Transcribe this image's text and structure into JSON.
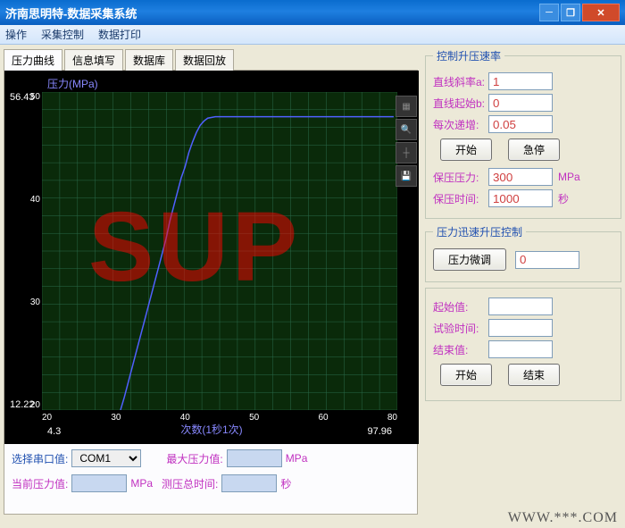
{
  "window": {
    "title": "济南思明特-数据采集系统"
  },
  "menu": {
    "items": [
      "操作",
      "采集控制",
      "数据打印"
    ]
  },
  "tabs": {
    "items": [
      "压力曲线",
      "信息填写",
      "数据库",
      "数据回放"
    ],
    "active": 0
  },
  "chart": {
    "type": "line",
    "ylabel": "压力(MPa)",
    "xlabel": "次数(1秒1次)",
    "x_min": 4.3,
    "x_max": 97.96,
    "y_min": 12.22,
    "y_max": 56.43,
    "x_ticks": [
      20,
      30,
      40,
      50,
      60,
      80
    ],
    "y_ticks": [
      20,
      30,
      40,
      50
    ],
    "curve_color": "#5060ff",
    "grid_color": "#2a6a4a",
    "bg_color": "#0a2a0a",
    "outer_bg": "#000000",
    "points": [
      [
        25,
        12.22
      ],
      [
        26,
        14
      ],
      [
        27,
        16
      ],
      [
        28,
        18
      ],
      [
        29,
        20
      ],
      [
        30,
        22
      ],
      [
        31,
        24
      ],
      [
        32,
        26
      ],
      [
        33,
        28
      ],
      [
        34,
        30
      ],
      [
        35,
        32
      ],
      [
        36,
        34
      ],
      [
        37,
        36
      ],
      [
        38,
        38.5
      ],
      [
        39,
        40.5
      ],
      [
        40,
        42.5
      ],
      [
        41,
        44.5
      ],
      [
        42,
        46
      ],
      [
        43,
        48
      ],
      [
        44,
        49.5
      ],
      [
        45,
        50.8
      ],
      [
        46,
        51.8
      ],
      [
        47,
        52.4
      ],
      [
        48,
        52.8
      ],
      [
        50,
        53
      ],
      [
        55,
        53
      ],
      [
        60,
        53
      ],
      [
        70,
        53
      ],
      [
        80,
        53
      ],
      [
        90,
        53
      ],
      [
        97,
        53
      ]
    ],
    "watermark": "SUP"
  },
  "bottom": {
    "serial_label": "选择串口值:",
    "serial_value": "COM1",
    "current_label": "当前压力值:",
    "current_value": "",
    "current_unit": "MPa",
    "max_label": "最大压力值:",
    "max_value": "",
    "max_unit": "MPa",
    "total_label": "测压总时间:",
    "total_value": "",
    "total_unit": "秒"
  },
  "ramp": {
    "legend": "控制升压速率",
    "slope_label": "直线斜率a:",
    "slope_value": "1",
    "start_label": "直线起始b:",
    "start_value": "0",
    "step_label": "每次递增:",
    "step_value": "0.05",
    "btn_start": "开始",
    "btn_pause": "急停",
    "hold_p_label": "保压压力:",
    "hold_p_value": "300",
    "hold_p_unit": "MPa",
    "hold_t_label": "保压时间:",
    "hold_t_value": "1000",
    "hold_t_unit": "秒"
  },
  "fast": {
    "legend": "压力迅速升压控制",
    "fine_label": "压力微调",
    "fine_value": "0"
  },
  "run": {
    "start_label": "起始值:",
    "start_value": "",
    "time_label": "试验时间:",
    "time_value": "",
    "end_label": "结束值:",
    "end_value": "",
    "btn_start": "开始",
    "btn_end": "结束"
  },
  "footer": "WWW.***.COM"
}
